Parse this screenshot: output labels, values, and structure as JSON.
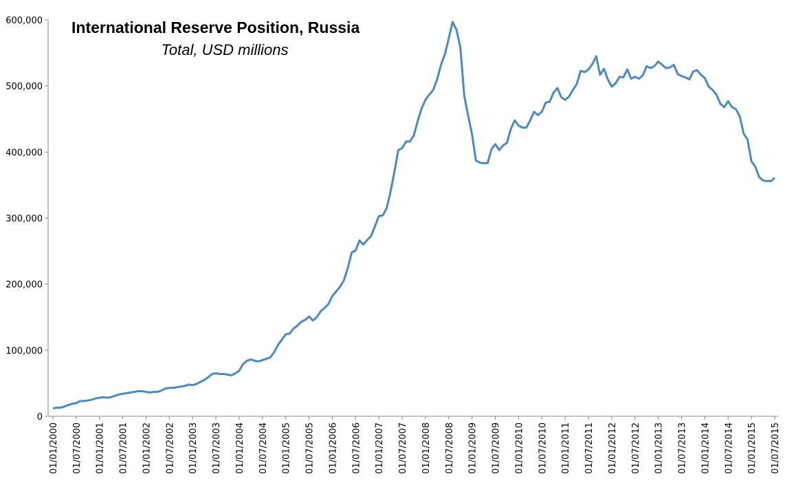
{
  "chart_data": {
    "type": "line",
    "title": "International Reserve Position, Russia",
    "subtitle": "Total, USD millions",
    "categories": [
      "01/01/2000",
      null,
      null,
      null,
      null,
      null,
      "01/07/2000",
      null,
      null,
      null,
      null,
      null,
      "01/01/2001",
      null,
      null,
      null,
      null,
      null,
      "01/07/2001",
      null,
      null,
      null,
      null,
      null,
      "01/01/2002",
      null,
      null,
      null,
      null,
      null,
      "01/07/2002",
      null,
      null,
      null,
      null,
      null,
      "01/01/2003",
      null,
      null,
      null,
      null,
      null,
      "01/07/2003",
      null,
      null,
      null,
      null,
      null,
      "01/01/2004",
      null,
      null,
      null,
      null,
      null,
      "01/07/2004",
      null,
      null,
      null,
      null,
      null,
      "01/01/2005",
      null,
      null,
      null,
      null,
      null,
      "01/07/2005",
      null,
      null,
      null,
      null,
      null,
      "01/01/2006",
      null,
      null,
      null,
      null,
      null,
      "01/07/2006",
      null,
      null,
      null,
      null,
      null,
      "01/01/2007",
      null,
      null,
      null,
      null,
      null,
      "01/07/2007",
      null,
      null,
      null,
      null,
      null,
      "01/01/2008",
      null,
      null,
      null,
      null,
      null,
      "01/07/2008",
      null,
      null,
      null,
      null,
      null,
      "01/01/2009",
      null,
      null,
      null,
      null,
      null,
      "01/07/2009",
      null,
      null,
      null,
      null,
      null,
      "01/01/2010",
      null,
      null,
      null,
      null,
      null,
      "01/07/2010",
      null,
      null,
      null,
      null,
      null,
      "01/01/2011",
      null,
      null,
      null,
      null,
      null,
      "01/07/2011",
      null,
      null,
      null,
      null,
      null,
      "01/01/2012",
      null,
      null,
      null,
      null,
      null,
      "01/07/2012",
      null,
      null,
      null,
      null,
      null,
      "01/01/2013",
      null,
      null,
      null,
      null,
      null,
      "01/07/2013",
      null,
      null,
      null,
      null,
      null,
      "01/01/2014",
      null,
      null,
      null,
      null,
      null,
      "01/07/2014",
      null,
      null,
      null,
      null,
      null,
      "01/01/2015",
      null,
      null,
      null,
      null,
      null,
      "01/07/2015"
    ],
    "values": [
      12000,
      13000,
      13000,
      15000,
      17000,
      19000,
      20000,
      23000,
      23000,
      24000,
      25000,
      27000,
      28000,
      29000,
      28000,
      29000,
      31000,
      33000,
      34000,
      35000,
      36000,
      37000,
      38000,
      38000,
      37000,
      36000,
      37000,
      37000,
      39000,
      42000,
      43000,
      43000,
      44000,
      45000,
      46000,
      48000,
      47000,
      49000,
      52000,
      55000,
      59000,
      64000,
      65000,
      64000,
      64000,
      63000,
      62000,
      65000,
      69000,
      79000,
      84000,
      86000,
      84000,
      83000,
      85000,
      87000,
      89000,
      97000,
      108000,
      116000,
      124000,
      125000,
      133000,
      137000,
      143000,
      146000,
      151000,
      145000,
      150000,
      159000,
      164000,
      170000,
      182000,
      189000,
      196000,
      206000,
      225000,
      248000,
      251000,
      266000,
      260000,
      267000,
      273000,
      288000,
      303000,
      304000,
      315000,
      340000,
      370000,
      403000,
      406000,
      416000,
      416000,
      425000,
      447000,
      466000,
      479000,
      487000,
      494000,
      510000,
      532000,
      548000,
      572000,
      597000,
      585000,
      558000,
      485000,
      455000,
      427000,
      387000,
      384000,
      383000,
      383000,
      404000,
      412000,
      403000,
      410000,
      414000,
      435000,
      448000,
      440000,
      437000,
      437000,
      448000,
      461000,
      456000,
      461000,
      475000,
      476000,
      490000,
      497000,
      483000,
      479000,
      484000,
      494000,
      503000,
      523000,
      521000,
      525000,
      533000,
      545000,
      517000,
      526000,
      510000,
      499000,
      504000,
      514000,
      513000,
      525000,
      511000,
      514000,
      511000,
      516000,
      530000,
      527000,
      530000,
      537000,
      532000,
      527000,
      528000,
      532000,
      518000,
      515000,
      513000,
      510000,
      522000,
      524000,
      517000,
      512000,
      499000,
      494000,
      487000,
      473000,
      468000,
      477000,
      468000,
      465000,
      454000,
      428000,
      419000,
      386000,
      378000,
      362000,
      357000,
      356000,
      356000,
      361000
    ],
    "color": "#4a89c8",
    "ylim": [
      0,
      600000
    ],
    "yticks": [
      0,
      {
        "value": 100000,
        "label": "100,000"
      },
      {
        "value": 200000,
        "label": "200,000"
      },
      {
        "value": 300000,
        "label": "300,000"
      },
      {
        "value": 400000,
        "label": "400,000"
      },
      {
        "value": 500000,
        "label": "500,000"
      },
      {
        "value": 600000,
        "label": "600,000"
      }
    ],
    "grid": false
  }
}
